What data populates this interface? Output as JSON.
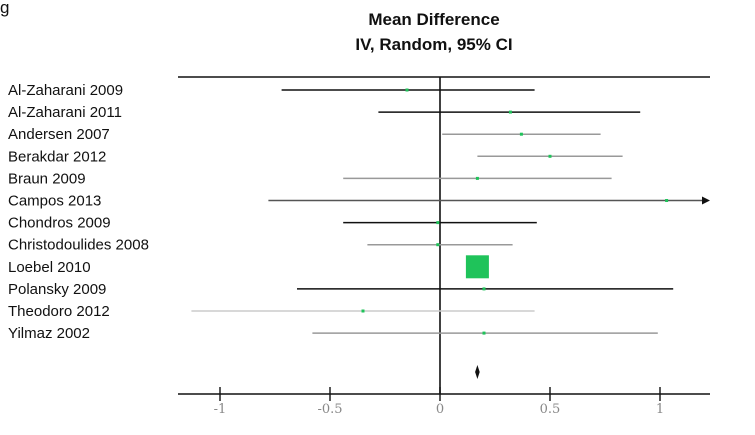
{
  "chart_data": {
    "type": "forest",
    "corner_label": "g",
    "title_lines": [
      "Mean Difference",
      "IV, Random, 95% CI"
    ],
    "xlim": [
      -1.2,
      1.2
    ],
    "ticks": [
      {
        "value": -1,
        "label": "-1"
      },
      {
        "value": -0.5,
        "label": "-0.5"
      },
      {
        "value": 0,
        "label": "0"
      },
      {
        "value": 0.5,
        "label": "0.5"
      },
      {
        "value": 1,
        "label": "1"
      }
    ],
    "studies": [
      {
        "label": "Al-Zaharani 2009",
        "mean": -0.15,
        "lower": -0.72,
        "upper": 0.43,
        "shade": "#111111",
        "weight": 0.3
      },
      {
        "label": "Al-Zaharani 2011",
        "mean": 0.32,
        "lower": -0.28,
        "upper": 0.91,
        "shade": "#111111",
        "weight": 0.3
      },
      {
        "label": "Andersen 2007",
        "mean": 0.37,
        "lower": 0.01,
        "upper": 0.73,
        "shade": "#999999",
        "weight": 0.3
      },
      {
        "label": "Berakdar 2012",
        "mean": 0.5,
        "lower": 0.17,
        "upper": 0.83,
        "shade": "#999999",
        "weight": 0.3
      },
      {
        "label": "Braun 2009",
        "mean": 0.17,
        "lower": -0.44,
        "upper": 0.78,
        "shade": "#999999",
        "weight": 0.3
      },
      {
        "label": "Campos 2013",
        "mean": 1.03,
        "lower": -0.78,
        "upper": 1.2,
        "shade": "#555555",
        "weight": 0.3,
        "arrow_right": true
      },
      {
        "label": "Chondros 2009",
        "mean": -0.01,
        "lower": -0.44,
        "upper": 0.44,
        "shade": "#111111",
        "weight": 0.3
      },
      {
        "label": "Christodoulides 2008",
        "mean": -0.01,
        "lower": -0.33,
        "upper": 0.33,
        "shade": "#999999",
        "weight": 0.3
      },
      {
        "label": "Loebel 2010",
        "mean": 0.17,
        "lower": 0.17,
        "upper": 0.17,
        "shade": "#111111",
        "weight": 1.0
      },
      {
        "label": "Polansky 2009",
        "mean": 0.2,
        "lower": -0.65,
        "upper": 1.06,
        "shade": "#111111",
        "weight": 0.3
      },
      {
        "label": "Theodoro 2012",
        "mean": -0.35,
        "lower": -1.13,
        "upper": 0.43,
        "shade": "#cccccc",
        "weight": 0.3
      },
      {
        "label": "Yilmaz 2002",
        "mean": 0.2,
        "lower": -0.58,
        "upper": 0.99,
        "shade": "#999999",
        "weight": 0.3
      }
    ],
    "pooled": {
      "mean": 0.17,
      "lower": 0.165,
      "upper": 0.175
    },
    "colors": {
      "marker": "#1fc35a",
      "axis": "#111111",
      "tick_label": "#888888"
    }
  }
}
